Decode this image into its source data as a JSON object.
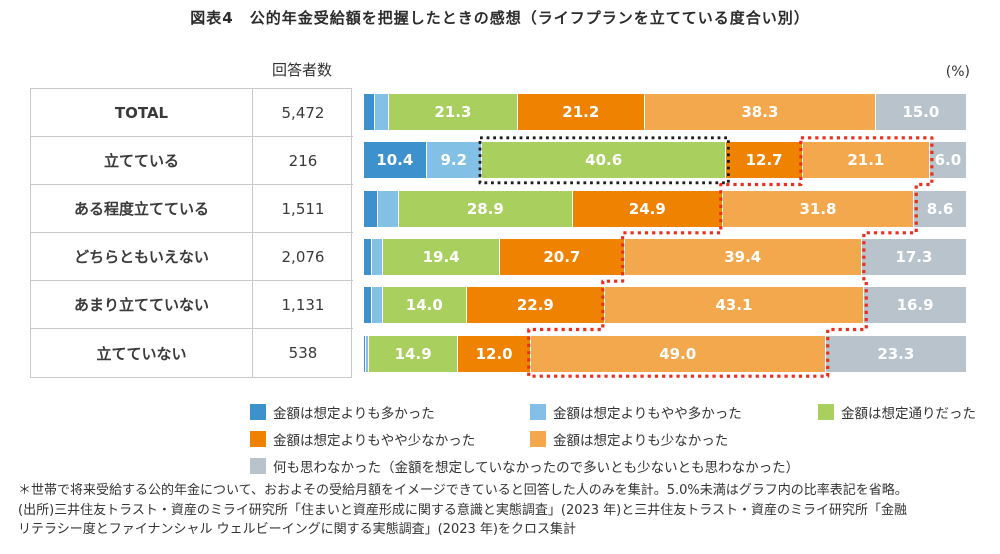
{
  "title": "図表4　公的年金受給額を把握したときの感想（ライフプランを立てている度合い別）",
  "table": {
    "header": "回答者数",
    "rows": [
      {
        "label": "TOTAL",
        "count": "5,472"
      },
      {
        "label": "立てている",
        "count": "216"
      },
      {
        "label": "ある程度立てている",
        "count": "1,511"
      },
      {
        "label": "どちらともいえない",
        "count": "2,076"
      },
      {
        "label": "あまり立てていない",
        "count": "1,131"
      },
      {
        "label": "立てていない",
        "count": "538"
      }
    ]
  },
  "chart": {
    "unit_label": "(%)"
  },
  "chart_data": {
    "type": "bar",
    "stacked": true,
    "orientation": "horizontal",
    "title": "公的年金受給額を把握したときの感想（ライフプランを立てている度合い別）",
    "unit": "%",
    "xlim": [
      0,
      100
    ],
    "label_threshold": 5.0,
    "categories": [
      "TOTAL",
      "立てている",
      "ある程度立てている",
      "どちらともいえない",
      "あまり立てていない",
      "立てていない"
    ],
    "respondent_counts": [
      5472,
      216,
      1511,
      2076,
      1131,
      538
    ],
    "series": [
      {
        "name": "金額は想定よりも多かった",
        "color": "#3d91cc",
        "values": [
          1.9,
          10.4,
          2.4,
          1.4,
          1.3,
          0.3
        ]
      },
      {
        "name": "金額は想定よりもやや多かった",
        "color": "#82c0e6",
        "values": [
          2.3,
          9.2,
          3.4,
          1.8,
          1.8,
          0.5
        ]
      },
      {
        "name": "金額は想定通りだった",
        "color": "#a9d05f",
        "values": [
          21.3,
          40.6,
          28.9,
          19.4,
          14.0,
          14.9
        ]
      },
      {
        "name": "金額は想定よりもやや少なかった",
        "color": "#ef8200",
        "values": [
          21.2,
          12.7,
          24.9,
          20.7,
          22.9,
          12.0
        ]
      },
      {
        "name": "金額は想定よりも少なかった",
        "color": "#f4a84e",
        "values": [
          38.3,
          21.1,
          31.8,
          39.4,
          43.1,
          49.0
        ]
      },
      {
        "name": "何も思わなかった（金額を想定していなかったので多いとも少ないとも思わなかった）",
        "color": "#b9c3cc",
        "values": [
          15.0,
          6.0,
          8.6,
          17.3,
          16.9,
          23.3
        ]
      }
    ],
    "annotations": {
      "black_dotted_box": {
        "category": "立てている",
        "series": "金額は想定通りだった",
        "color": "#1d1d1d"
      },
      "red_dotted_outline": {
        "categories": [
          "立てている",
          "ある程度立てている",
          "どちらともいえない",
          "あまり立てていない",
          "立てていない"
        ],
        "series": "金額は想定よりも少なかった",
        "color": "#ea2f1e"
      }
    },
    "legend_position": "bottom"
  },
  "footnote_lines": [
    "＊世帯で将来受給する公的年金について、おおよその受給月額をイメージできていると回答した人のみを集計。5.0%未満はグラフ内の比率表記を省略。",
    "(出所)三井住友トラスト・資産のミライ研究所「住まいと資産形成に関する意識と実態調査」(2023 年)と三井住友トラスト・資産のミライ研究所「金融",
    "リテラシー度とファイナンシャル ウェルビーイングに関する実態調査」(2023 年)をクロス集計"
  ]
}
